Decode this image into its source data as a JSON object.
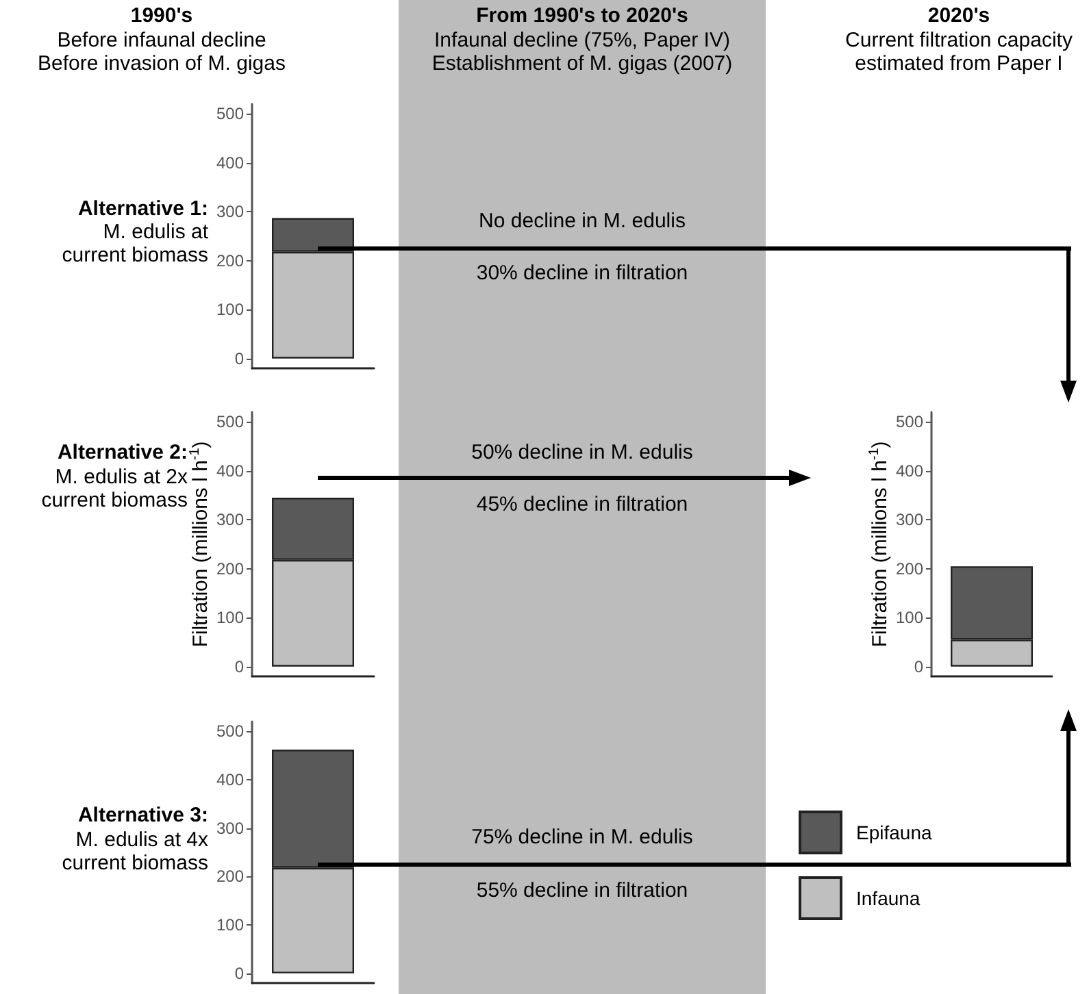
{
  "chart_data": [
    {
      "type": "bar",
      "stacked": true,
      "categories": [
        null
      ],
      "series": [
        {
          "color": "#bfbfbf",
          "values": [
            218
          ]
        },
        {
          "color": "#595959",
          "values": [
            69
          ]
        }
      ],
      "ylim": [
        -20,
        520
      ],
      "yticks": [
        0,
        100,
        200,
        300,
        400,
        500
      ],
      "annotations": [
        "1990's",
        "Before infaunal decline",
        "Before invasion of M. gigas",
        "From 1990's to 2020's",
        "Infaunal decline (75%, Paper IV)",
        "Establishment of M. gigas (2007)",
        "Alternative 1:",
        "M. edulis at current biomass",
        "No decline in M. edulis",
        "30% decline in filtration"
      ]
    },
    {
      "type": "bar",
      "stacked": true,
      "categories": [
        null
      ],
      "series": [
        {
          "color": "#bfbfbf",
          "values": [
            218
          ]
        },
        {
          "color": "#595959",
          "values": [
            127
          ]
        }
      ],
      "ylim": [
        -20,
        520
      ],
      "yticks": [
        0,
        100,
        200,
        300,
        400,
        500
      ],
      "ylabel": "Filtration (millions l h$^{-1}$)",
      "annotations": [
        "Alternative 2:",
        "M. edulis at 2x current biomass",
        "50% decline in M. edulis",
        "45% decline in filtration"
      ]
    },
    {
      "type": "bar",
      "stacked": true,
      "categories": [
        null
      ],
      "series": [
        {
          "color": "#bfbfbf",
          "values": [
            218
          ]
        },
        {
          "color": "#595959",
          "values": [
            244
          ]
        }
      ],
      "ylim": [
        -20,
        520
      ],
      "yticks": [
        0,
        100,
        200,
        300,
        400,
        500
      ],
      "annotations": [
        "Alternative 3:",
        "M. edulis at 4x current biomass",
        "75% decline in M. edulis",
        "55% decline in filtration"
      ]
    },
    {
      "type": "bar",
      "stacked": true,
      "categories": [
        null
      ],
      "series": [
        {
          "name": "Infauna",
          "color": "#bfbfbf",
          "values": [
            55
          ]
        },
        {
          "name": "Epifauna",
          "color": "#595959",
          "values": [
            150
          ]
        }
      ],
      "ylim": [
        -20,
        520
      ],
      "yticks": [
        0,
        100,
        200,
        300,
        400,
        500
      ],
      "ylabel": "Filtration (millions l h$^{-1}$)",
      "legend": "bottom left",
      "annotations": [
        "2020's",
        "Current filtration capacity estimated from Paper I"
      ]
    }
  ]
}
